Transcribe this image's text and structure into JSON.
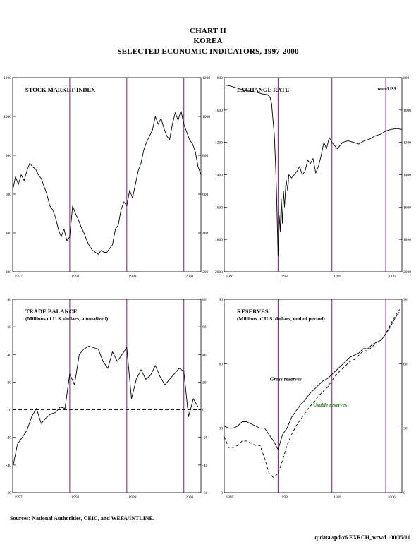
{
  "header": {
    "line1": "CHART II",
    "line2": "KOREA",
    "line3": "SELECTED ECONOMIC INDICATORS, 1997-2000"
  },
  "footer": {
    "sources": "Sources: National Authorities, CEIC, and WEFA/INTLINE.",
    "file_ref": "q:data\\spd\\x6 EXRCH_wcwd 100/05/16"
  },
  "colors": {
    "year_divider": "#7a1a7a",
    "usable_reserves_label": "#1a7a1a",
    "line": "#000000"
  },
  "chart_data": [
    {
      "id": "stock",
      "type": "line",
      "title": "STOCK MARKET INDEX",
      "subtitle": "",
      "unit_label": "",
      "ylim": [
        200,
        1200
      ],
      "yticks": [
        "1200",
        "1000",
        "800",
        "600",
        "400",
        "200"
      ],
      "xlim": [
        1997.0,
        2000.3
      ],
      "x_tick_labels": [
        {
          "x": 1997.0,
          "label": "1997"
        },
        {
          "x": 1998.0,
          "label": "1998"
        },
        {
          "x": 1999.0,
          "label": "1999"
        },
        {
          "x": 2000.0,
          "label": "2000"
        }
      ],
      "year_dividers": [
        1998.0,
        1999.0,
        2000.0
      ],
      "zero_line": false,
      "grid": false,
      "series": [
        {
          "style": "solid",
          "x": [
            1997.0,
            1997.05,
            1997.1,
            1997.15,
            1997.2,
            1997.25,
            1997.3,
            1997.35,
            1997.4,
            1997.45,
            1997.5,
            1997.55,
            1997.6,
            1997.65,
            1997.7,
            1997.75,
            1997.8,
            1997.85,
            1997.9,
            1997.95,
            1998.0,
            1998.05,
            1998.1,
            1998.15,
            1998.2,
            1998.25,
            1998.3,
            1998.35,
            1998.4,
            1998.45,
            1998.5,
            1998.55,
            1998.6,
            1998.65,
            1998.7,
            1998.75,
            1998.8,
            1998.85,
            1998.9,
            1998.95,
            1999.0,
            1999.05,
            1999.1,
            1999.15,
            1999.2,
            1999.25,
            1999.3,
            1999.35,
            1999.4,
            1999.45,
            1999.5,
            1999.55,
            1999.6,
            1999.65,
            1999.7,
            1999.75,
            1999.8,
            1999.85,
            1999.9,
            1999.95,
            2000.0,
            2000.05,
            2000.1,
            2000.15,
            2000.2,
            2000.25,
            2000.3
          ],
          "values": [
            620,
            690,
            650,
            700,
            670,
            720,
            760,
            740,
            730,
            700,
            680,
            640,
            600,
            540,
            520,
            480,
            420,
            380,
            420,
            360,
            380,
            540,
            500,
            470,
            430,
            400,
            360,
            330,
            310,
            300,
            290,
            310,
            300,
            300,
            320,
            340,
            420,
            440,
            520,
            560,
            540,
            620,
            580,
            650,
            720,
            760,
            830,
            870,
            900,
            930,
            1000,
            960,
            990,
            940,
            900,
            880,
            960,
            1020,
            980,
            1030,
            960,
            920,
            880,
            860,
            820,
            740,
            700
          ]
        }
      ]
    },
    {
      "id": "exchange",
      "type": "line",
      "title": "EXCHANGE RATE",
      "subtitle": "",
      "unit_label": "won/US$",
      "ylim": [
        800,
        2000
      ],
      "inverted": true,
      "yticks": [
        "800",
        "1000",
        "1200",
        "1400",
        "1600",
        "1800",
        "2000"
      ],
      "xlim": [
        1997.0,
        2000.3
      ],
      "x_tick_labels": [
        {
          "x": 1997.0,
          "label": "1997"
        },
        {
          "x": 1998.0,
          "label": "1998"
        },
        {
          "x": 1999.0,
          "label": "1999"
        },
        {
          "x": 2000.0,
          "label": "2000"
        }
      ],
      "year_dividers": [
        1998.0,
        1999.0,
        2000.0
      ],
      "zero_line": false,
      "grid": false,
      "series": [
        {
          "style": "solid",
          "x": [
            1997.0,
            1997.1,
            1997.2,
            1997.3,
            1997.4,
            1997.5,
            1997.6,
            1997.7,
            1997.8,
            1997.85,
            1997.88,
            1997.9,
            1997.93,
            1997.95,
            1997.97,
            1998.0,
            1998.02,
            1998.04,
            1998.06,
            1998.08,
            1998.1,
            1998.12,
            1998.15,
            1998.18,
            1998.2,
            1998.25,
            1998.3,
            1998.35,
            1998.4,
            1998.45,
            1998.5,
            1998.55,
            1998.6,
            1998.65,
            1998.7,
            1998.75,
            1998.8,
            1998.85,
            1998.9,
            1998.95,
            1999.0,
            1999.1,
            1999.2,
            1999.3,
            1999.4,
            1999.5,
            1999.6,
            1999.7,
            1999.8,
            1999.9,
            2000.0,
            2000.1,
            2000.2,
            2000.3
          ],
          "values": [
            845,
            850,
            860,
            870,
            880,
            885,
            890,
            900,
            905,
            920,
            960,
            1040,
            1150,
            1300,
            1500,
            1900,
            1650,
            1750,
            1550,
            1700,
            1500,
            1600,
            1430,
            1500,
            1400,
            1420,
            1400,
            1380,
            1350,
            1400,
            1380,
            1310,
            1330,
            1300,
            1390,
            1350,
            1280,
            1200,
            1240,
            1170,
            1200,
            1240,
            1200,
            1190,
            1200,
            1210,
            1190,
            1180,
            1160,
            1150,
            1130,
            1120,
            1115,
            1120
          ]
        }
      ]
    },
    {
      "id": "trade",
      "type": "line",
      "title": "TRADE BALANCE",
      "subtitle": "(Millions of U.S. dollars, annualized)",
      "unit_label": "",
      "ylim": [
        -60,
        80
      ],
      "yticks": [
        "80",
        "60",
        "40",
        "20",
        "0",
        "-20",
        "-40",
        "-60"
      ],
      "xlim": [
        1997.0,
        2000.3
      ],
      "x_tick_labels": [
        {
          "x": 1997.0,
          "label": "1997"
        },
        {
          "x": 1998.0,
          "label": "1998"
        },
        {
          "x": 1999.0,
          "label": "1999"
        },
        {
          "x": 2000.0,
          "label": "2000"
        }
      ],
      "year_dividers": [
        1998.0,
        1999.0,
        2000.0
      ],
      "zero_line": true,
      "grid": false,
      "series": [
        {
          "style": "solid",
          "x": [
            1997.0,
            1997.083,
            1997.167,
            1997.25,
            1997.333,
            1997.417,
            1997.5,
            1997.583,
            1997.667,
            1997.75,
            1997.833,
            1997.917,
            1998.0,
            1998.083,
            1998.167,
            1998.25,
            1998.333,
            1998.417,
            1998.5,
            1998.583,
            1998.667,
            1998.75,
            1998.833,
            1998.917,
            1999.0,
            1999.083,
            1999.167,
            1999.25,
            1999.333,
            1999.417,
            1999.5,
            1999.583,
            1999.667,
            1999.75,
            1999.833,
            1999.917,
            2000.0,
            2000.083,
            2000.167,
            2000.25
          ],
          "values": [
            -42,
            -25,
            -20,
            -15,
            -5,
            1,
            -10,
            -6,
            -3,
            -2,
            2,
            1,
            26,
            18,
            40,
            44,
            46,
            45,
            44,
            35,
            30,
            42,
            35,
            40,
            45,
            8,
            22,
            29,
            22,
            25,
            32,
            24,
            18,
            22,
            26,
            30,
            28,
            -5,
            8,
            2
          ]
        }
      ]
    },
    {
      "id": "reserves",
      "type": "line",
      "title": "RESERVES",
      "subtitle": "(Millions of U.S. dollars, end of period)",
      "unit_label": "",
      "ylim": [
        0,
        90
      ],
      "yticks": [
        "90",
        "60",
        "30",
        "0"
      ],
      "xlim": [
        1997.0,
        2000.3
      ],
      "x_tick_labels": [
        {
          "x": 1997.0,
          "label": "1997"
        },
        {
          "x": 1998.0,
          "label": "1998"
        },
        {
          "x": 1999.0,
          "label": "1999"
        },
        {
          "x": 2000.0,
          "label": "2000"
        }
      ],
      "year_dividers": [
        1998.0,
        1999.0,
        2000.0
      ],
      "zero_line": false,
      "grid": false,
      "series_labels": [
        {
          "name": "Gross reserves",
          "color_key": "line"
        },
        {
          "name": "Usable reserves",
          "color_key": "usable_reserves_label"
        }
      ],
      "series": [
        {
          "name": "Gross reserves",
          "style": "solid",
          "x": [
            1997.0,
            1997.083,
            1997.167,
            1997.25,
            1997.333,
            1997.417,
            1997.5,
            1997.583,
            1997.667,
            1997.75,
            1997.833,
            1997.917,
            1998.0,
            1998.083,
            1998.167,
            1998.25,
            1998.333,
            1998.417,
            1998.5,
            1998.583,
            1998.667,
            1998.75,
            1998.833,
            1998.917,
            1999.0,
            1999.083,
            1999.167,
            1999.25,
            1999.333,
            1999.417,
            1999.5,
            1999.583,
            1999.667,
            1999.75,
            1999.833,
            1999.917,
            2000.0,
            2000.083,
            2000.167,
            2000.25
          ],
          "values": [
            31,
            30,
            30,
            31,
            33,
            33,
            32,
            31,
            30,
            30,
            27,
            24,
            20,
            27,
            30,
            35,
            38,
            41,
            43,
            46,
            48,
            50,
            52,
            53,
            55,
            57,
            59,
            61,
            63,
            64,
            65,
            67,
            67,
            69,
            70,
            71,
            74,
            77,
            81,
            84
          ]
        },
        {
          "name": "Usable reserves",
          "style": "dashed",
          "x": [
            1997.0,
            1997.083,
            1997.167,
            1997.25,
            1997.333,
            1997.417,
            1997.5,
            1997.583,
            1997.667,
            1997.75,
            1997.833,
            1997.917,
            1998.0,
            1998.083,
            1998.167,
            1998.25,
            1998.333,
            1998.417,
            1998.5,
            1998.583,
            1998.667,
            1998.75,
            1998.833,
            1998.917,
            1999.0,
            1999.083,
            1999.167,
            1999.25,
            1999.333,
            1999.417,
            1999.5,
            1999.583,
            1999.667,
            1999.75,
            1999.833,
            1999.917,
            2000.0,
            2000.083,
            2000.167,
            2000.25,
            2000.3
          ],
          "values": [
            26,
            21,
            21,
            22,
            24,
            24,
            23,
            22,
            22,
            16,
            9,
            7,
            9,
            15,
            22,
            27,
            31,
            34,
            37,
            40,
            42,
            45,
            47,
            49,
            52,
            55,
            57,
            59,
            61,
            62,
            64,
            66,
            66,
            68,
            70,
            71,
            74,
            78,
            82,
            85,
            86
          ]
        }
      ]
    }
  ]
}
